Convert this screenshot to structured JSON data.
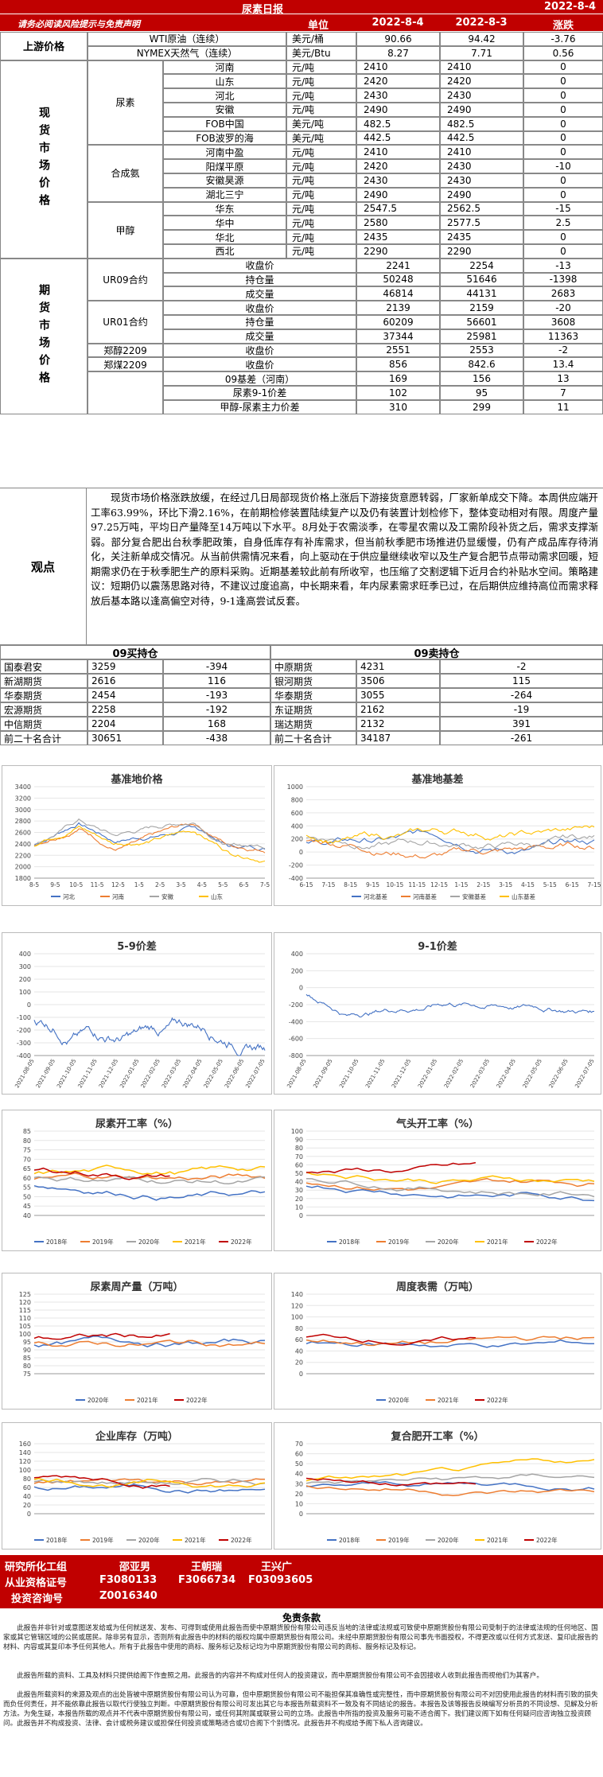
{
  "header": {
    "title": "尿素日报",
    "date_corner": "2022-8-4",
    "disclaimer_link": "请务必阅读风险提示与免责声明"
  },
  "columns": {
    "unit": "单位",
    "d1": "2022-8-4",
    "d2": "2022-8-3",
    "chg": "涨跌"
  },
  "sections": {
    "upstream": "上游价格",
    "spot": "现货市场价格",
    "futures": "期货市场价格",
    "view": "观点",
    "urea": "尿素",
    "ammonia": "合成氨",
    "methanol": "甲醇",
    "ur09": "UR09合约",
    "ur01": "UR01合约"
  },
  "upstream_rows": [
    {
      "name": "WTI原油（连续）",
      "unit": "美元/桶",
      "v1": "90.66",
      "v2": "94.42",
      "chg": "-3.76"
    },
    {
      "name": "NYMEX天然气（连续）",
      "unit": "美元/Btu",
      "v1": "8.27",
      "v2": "7.71",
      "chg": "0.56"
    }
  ],
  "spot_rows": [
    {
      "name": "河南",
      "unit": "元/吨",
      "v1": "2410",
      "v2": "2410",
      "chg": "0"
    },
    {
      "name": "山东",
      "unit": "元/吨",
      "v1": "2420",
      "v2": "2420",
      "chg": "0"
    },
    {
      "name": "河北",
      "unit": "元/吨",
      "v1": "2430",
      "v2": "2430",
      "chg": "0"
    },
    {
      "name": "安徽",
      "unit": "元/吨",
      "v1": "2490",
      "v2": "2490",
      "chg": "0"
    },
    {
      "name": "FOB中国",
      "unit": "美元/吨",
      "v1": "482.5",
      "v2": "482.5",
      "chg": "0"
    },
    {
      "name": "FOB波罗的海",
      "unit": "美元/吨",
      "v1": "442.5",
      "v2": "442.5",
      "chg": "0"
    },
    {
      "name": "河南中盈",
      "unit": "元/吨",
      "v1": "2410",
      "v2": "2410",
      "chg": "0"
    },
    {
      "name": "阳煤平原",
      "unit": "元/吨",
      "v1": "2420",
      "v2": "2430",
      "chg": "-10"
    },
    {
      "name": "安徽昊源",
      "unit": "元/吨",
      "v1": "2430",
      "v2": "2430",
      "chg": "0"
    },
    {
      "name": "湖北三宁",
      "unit": "元/吨",
      "v1": "2490",
      "v2": "2490",
      "chg": "0"
    },
    {
      "name": "华东",
      "unit": "元/吨",
      "v1": "2547.5",
      "v2": "2562.5",
      "chg": "-15"
    },
    {
      "name": "华中",
      "unit": "元/吨",
      "v1": "2580",
      "v2": "2577.5",
      "chg": "2.5"
    },
    {
      "name": "华北",
      "unit": "元/吨",
      "v1": "2435",
      "v2": "2435",
      "chg": "0"
    },
    {
      "name": "西北",
      "unit": "元/吨",
      "v1": "2290",
      "v2": "2290",
      "chg": "0"
    }
  ],
  "futures_rows": [
    {
      "group": "UR09合约",
      "name": "收盘价",
      "v1": "2241",
      "v2": "2254",
      "chg": "-13"
    },
    {
      "group": "",
      "name": "持仓量",
      "v1": "50248",
      "v2": "51646",
      "chg": "-1398"
    },
    {
      "group": "",
      "name": "成交量",
      "v1": "46814",
      "v2": "44131",
      "chg": "2683"
    },
    {
      "group": "UR01合约",
      "name": "收盘价",
      "v1": "2139",
      "v2": "2159",
      "chg": "-20"
    },
    {
      "group": "",
      "name": "持仓量",
      "v1": "60209",
      "v2": "56601",
      "chg": "3608"
    },
    {
      "group": "",
      "name": "成交量",
      "v1": "37344",
      "v2": "25981",
      "chg": "11363"
    },
    {
      "group": "郑醇2209",
      "name": "收盘价",
      "v1": "2551",
      "v2": "2553",
      "chg": "-2"
    },
    {
      "group": "郑煤2209",
      "name": "收盘价",
      "v1": "856",
      "v2": "842.6",
      "chg": "13.4"
    },
    {
      "group": "",
      "name": "09基差（河南）",
      "v1": "169",
      "v2": "156",
      "chg": "13"
    },
    {
      "group": "",
      "name": "尿素9-1价差",
      "v1": "102",
      "v2": "95",
      "chg": "7"
    },
    {
      "group": "",
      "name": "甲醇-尿素主力价差",
      "v1": "310",
      "v2": "299",
      "chg": "11"
    }
  ],
  "view_text": "现货市场价格涨跌放缓，在经过几日局部现货价格上涨后下游接货意愿转弱，厂家新单成交下降。本周供应端开工率63.99%，环比下滑2.16%，在前期检修装置陆续复产以及仍有装置计划检修下，整体变动相对有限。周度产量97.25万吨，平均日产量降至14万吨以下水平。8月处于农需淡季，在零星农需以及工需阶段补货之后，需求支撑渐弱。部分复合肥出台秋季肥政策，自身低库存有补库需求，但当前秋季肥市场推进仍显缓慢，仍有产成品库存待消化，关注新单成交情况。从当前供需情况来看，向上驱动在于供应量继续收窄以及生产复合肥节点带动需求回暖，短期需求仍在于秋季肥生产的原料采购。近期基差较此前有所收窄，也压缩了交割逻辑下近月合约补贴水空间。策略建议：短期仍以震荡思路对待，不建议过度追高，中长期来看，年内尿素需求旺季已过，在后期供应维持高位而需求释放后基本路以逢高偏空对待，9-1逢高尝试反套。",
  "positions": {
    "buy_title": "09买持仓",
    "sell_title": "09卖持仓",
    "buy": [
      {
        "name": "国泰君安",
        "v": "3259",
        "chg": "-394"
      },
      {
        "name": "新湖期货",
        "v": "2616",
        "chg": "116"
      },
      {
        "name": "华泰期货",
        "v": "2454",
        "chg": "-193"
      },
      {
        "name": "宏源期货",
        "v": "2258",
        "chg": "-192"
      },
      {
        "name": "中信期货",
        "v": "2204",
        "chg": "168"
      },
      {
        "name": "前二十名合计",
        "v": "30651",
        "chg": "-438"
      }
    ],
    "sell": [
      {
        "name": "中原期货",
        "v": "4231",
        "chg": "-2"
      },
      {
        "name": "银河期货",
        "v": "3506",
        "chg": "115"
      },
      {
        "name": "华泰期货",
        "v": "3055",
        "chg": "-264"
      },
      {
        "name": "东证期货",
        "v": "2162",
        "chg": "-19"
      },
      {
        "name": "瑞达期货",
        "v": "2132",
        "chg": "391"
      },
      {
        "name": "前二十名合计",
        "v": "34187",
        "chg": "-261"
      }
    ]
  },
  "chart_data": [
    {
      "type": "line",
      "title": "基准地价格",
      "ylim": [
        1800,
        3400
      ],
      "yticks": [
        "3400",
        "3200",
        "3000",
        "2800",
        "2600",
        "2400",
        "2200",
        "2000",
        "1800"
      ],
      "xticks": [
        "8-5",
        "9-5",
        "10-5",
        "11-5",
        "12-5",
        "1-5",
        "2-5",
        "3-5",
        "4-5",
        "5-5",
        "6-5",
        "7-5"
      ],
      "series": [
        {
          "name": "河北",
          "color": "#4472c4"
        },
        {
          "name": "河南",
          "color": "#ed7d31"
        },
        {
          "name": "安徽",
          "color": "#a5a5a5"
        },
        {
          "name": "山东",
          "color": "#ffc000"
        }
      ]
    },
    {
      "type": "line",
      "title": "基准地基差",
      "ylim": [
        -400,
        1000
      ],
      "yticks": [
        "1000",
        "800",
        "600",
        "400",
        "200",
        "0",
        "-200",
        "-400"
      ],
      "xticks": [
        "6-15",
        "7-15",
        "8-15",
        "9-15",
        "10-15",
        "11-15",
        "12-15",
        "1-15",
        "2-15",
        "3-15",
        "4-15",
        "5-15",
        "6-15",
        "7-15"
      ],
      "series": [
        {
          "name": "河北基差",
          "color": "#4472c4"
        },
        {
          "name": "河南基差",
          "color": "#ed7d31"
        },
        {
          "name": "安徽基差",
          "color": "#a5a5a5"
        },
        {
          "name": "山东基差",
          "color": "#ffc000"
        }
      ]
    },
    {
      "type": "line",
      "title": "5-9价差",
      "ylim": [
        -400,
        400
      ],
      "yticks": [
        "400",
        "300",
        "200",
        "100",
        "0",
        "-100",
        "-200",
        "-300",
        "-400"
      ],
      "xticks": [
        "2021-08-05",
        "2021-09-05",
        "2021-10-05",
        "2021-11-05",
        "2021-12-05",
        "2022-01-05",
        "2022-02-05",
        "2022-03-05",
        "2022-04-05",
        "2022-05-05",
        "2022-06-05",
        "2022-07-05"
      ],
      "series": [
        {
          "name": "",
          "color": "#4472c4"
        }
      ]
    },
    {
      "type": "line",
      "title": "9-1价差",
      "ylim": [
        -800,
        400
      ],
      "yticks": [
        "400",
        "200",
        "0",
        "-200",
        "-400",
        "-600",
        "-800"
      ],
      "xticks": [
        "2021-08-05",
        "2021-09-05",
        "2021-10-05",
        "2021-11-05",
        "2021-12-05",
        "2022-01-05",
        "2022-02-05",
        "2022-03-05",
        "2022-04-05",
        "2022-05-05",
        "2022-06-05",
        "2022-07-05"
      ],
      "series": [
        {
          "name": "",
          "color": "#4472c4"
        }
      ]
    },
    {
      "type": "line",
      "title": "尿素开工率（%）",
      "ylim": [
        40,
        85
      ],
      "yticks": [
        "85",
        "80",
        "75",
        "70",
        "65",
        "60",
        "55",
        "50",
        "45",
        "40"
      ],
      "xticks": [],
      "series": [
        {
          "name": "2018年",
          "color": "#4472c4"
        },
        {
          "name": "2019年",
          "color": "#ed7d31"
        },
        {
          "name": "2020年",
          "color": "#a5a5a5"
        },
        {
          "name": "2021年",
          "color": "#ffc000"
        },
        {
          "name": "2022年",
          "color": "#c00000"
        }
      ]
    },
    {
      "type": "line",
      "title": "气头开工率（%）",
      "ylim": [
        0,
        100
      ],
      "yticks": [
        "100",
        "90",
        "80",
        "70",
        "60",
        "50",
        "40",
        "30",
        "20",
        "10",
        "0"
      ],
      "xticks": [],
      "series": [
        {
          "name": "2018年",
          "color": "#4472c4"
        },
        {
          "name": "2019年",
          "color": "#ed7d31"
        },
        {
          "name": "2020年",
          "color": "#a5a5a5"
        },
        {
          "name": "2021年",
          "color": "#ffc000"
        },
        {
          "name": "2022年",
          "color": "#c00000"
        }
      ]
    },
    {
      "type": "line",
      "title": "尿素周产量（万吨）",
      "ylim": [
        75,
        125
      ],
      "yticks": [
        "125",
        "120",
        "115",
        "110",
        "105",
        "100",
        "95",
        "90",
        "85",
        "80",
        "75"
      ],
      "xticks": [],
      "series": [
        {
          "name": "2020年",
          "color": "#4472c4"
        },
        {
          "name": "2021年",
          "color": "#ed7d31"
        },
        {
          "name": "2022年",
          "color": "#c00000"
        }
      ]
    },
    {
      "type": "line",
      "title": "周度表需（万吨）",
      "ylim": [
        0,
        140
      ],
      "yticks": [
        "140",
        "120",
        "100",
        "80",
        "60",
        "40",
        "20",
        "0"
      ],
      "xticks": [],
      "series": [
        {
          "name": "2020年",
          "color": "#4472c4"
        },
        {
          "name": "2021年",
          "color": "#ed7d31"
        },
        {
          "name": "2022年",
          "color": "#c00000"
        }
      ]
    },
    {
      "type": "line",
      "title": "企业库存（万吨）",
      "ylim": [
        0,
        160
      ],
      "yticks": [
        "160",
        "140",
        "120",
        "100",
        "80",
        "60",
        "40",
        "20",
        "0"
      ],
      "xticks": [],
      "series": [
        {
          "name": "2018年",
          "color": "#4472c4"
        },
        {
          "name": "2019年",
          "color": "#ed7d31"
        },
        {
          "name": "2020年",
          "color": "#a5a5a5"
        },
        {
          "name": "2021年",
          "color": "#ffc000"
        },
        {
          "name": "2022年",
          "color": "#c00000"
        }
      ]
    },
    {
      "type": "line",
      "title": "复合肥开工率（%）",
      "ylim": [
        0,
        70
      ],
      "yticks": [
        "70",
        "60",
        "50",
        "40",
        "30",
        "20",
        "10",
        "0"
      ],
      "xticks": [],
      "series": [
        {
          "name": "2018年",
          "color": "#4472c4"
        },
        {
          "name": "2019年",
          "color": "#ed7d31"
        },
        {
          "name": "2020年",
          "color": "#a5a5a5"
        },
        {
          "name": "2021年",
          "color": "#ffc000"
        },
        {
          "name": "2022年",
          "color": "#c00000"
        }
      ]
    }
  ],
  "footer": {
    "team_label": "研究所化工组",
    "p1": "邵亚男",
    "p2": "王朝瑞",
    "p3": "王兴广",
    "qual_label": "从业资格证号",
    "q1": "F3080133",
    "q2": "F3066734",
    "q3": "F03093605",
    "consult_label": "投资咨询号",
    "c1": "Z0016340",
    "disc_title": "免责条款",
    "disc1": "此报告并非针对或意图送发给或为任何就送发、发布、可得到或使用此报告而使中原期货股份有限公司违反当地的法律或法规或可致使中原期货股份有限公司受制于的法律或法规的任何地区、国家或其它管辖区域的公民或居民。除非另有显示，否则所有此报告中的材料的版权均属中原期货股份有限公司。未经中原期货股份有限公司事先书面授权，不得更改或以任何方式发送、复印此报告的材料、内容或其复印本予任何其他人。所有于此报告中使用的商标、服务标记及标记均为中原期货股份有限公司的商标、服务标记及标记。",
    "disc2": "此报告所载的资料、工具及材料只提供给阁下作查照之用。此报告的内容并不构成对任何人的投资建议，而中原期货股份有限公司不会因接收人收到此报告而视他们为其客户。",
    "disc3": "此报告所载资料的来源及观点的出处皆被中原期货股份有限公司认为可靠，但中原期货股份有限公司不能担保其准确性或完整性，而中原期货股份有限公司不对因使用此报告的材料而引致的损失而负任何责任，并不能依靠此报告以取代行使独立判断。中原期货股份有限公司可发出其它与本报告所载资料不一致及有不同结论的报告。本报告及该等报告反映编写分析员的不同设想、见解及分析方法。为免生疑，本报告所载的观点并不代表中原期货股份有限公司，或任何其附属或联营公司的立场。此报告中所指的投资及服务可能不适合阁下。我们建议阁下如有任何疑问应咨询独立投资顾问。此报告并不构成投资、法律、会计或税务建议或担保任何投资或策略适合或切合阁下个别情况。此报告并不构成给予阁下私人咨询建议。"
  }
}
